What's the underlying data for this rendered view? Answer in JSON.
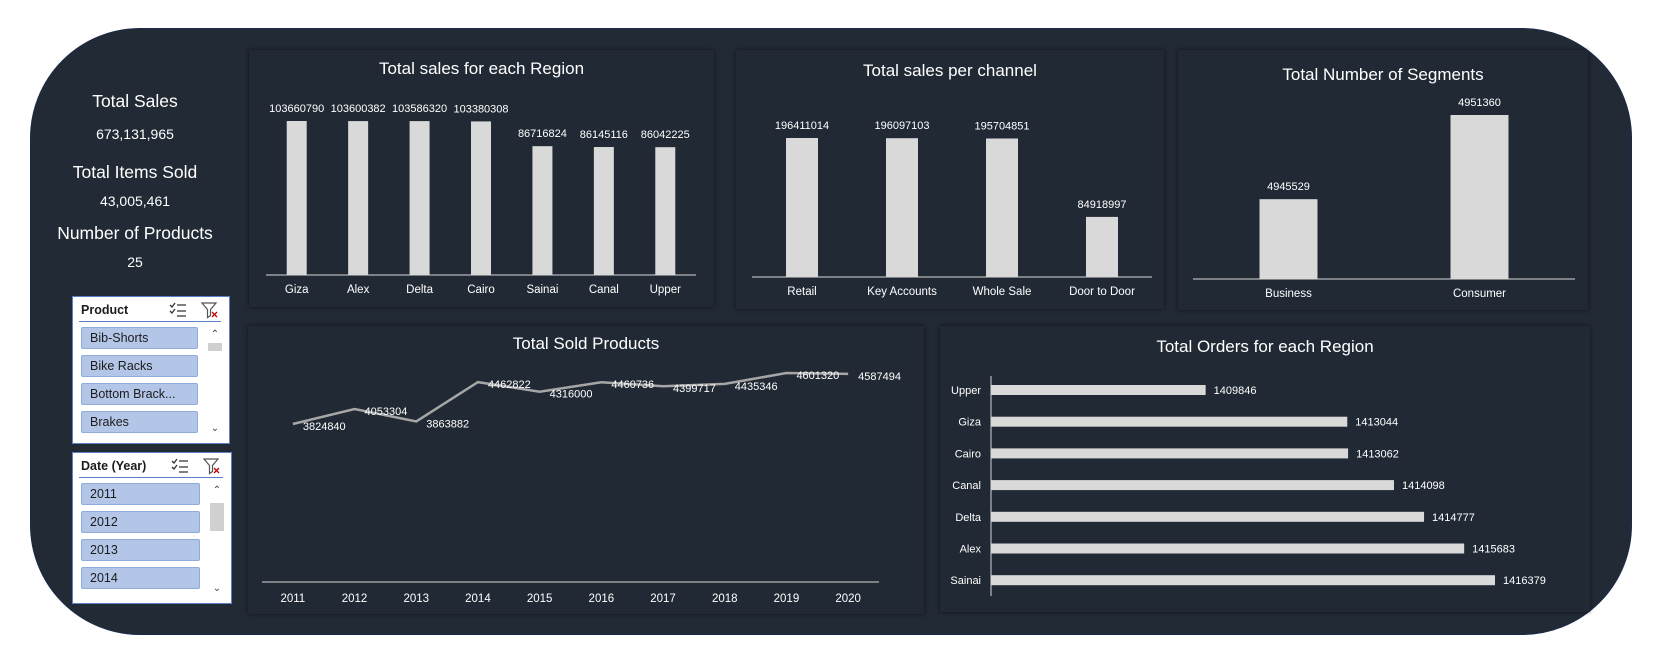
{
  "kpis": {
    "total_sales": {
      "label": "Total Sales",
      "value": "673,131,965"
    },
    "total_items": {
      "label": "Total Items Sold",
      "value": "43,005,461"
    },
    "num_products": {
      "label": "Number of Products",
      "value": "25"
    }
  },
  "slicers": {
    "product": {
      "title": "Product",
      "items": [
        "Bib-Shorts",
        "Bike Racks",
        "Bottom Brack...",
        "Brakes"
      ]
    },
    "year": {
      "title": "Date (Year)",
      "items": [
        "2011",
        "2012",
        "2013",
        "2014"
      ]
    }
  },
  "chart_data": [
    {
      "id": "region_sales",
      "type": "bar",
      "title": "Total sales for each Region",
      "categories": [
        "Giza",
        "Alex",
        "Delta",
        "Cairo",
        "Sainai",
        "Canal",
        "Upper"
      ],
      "values": [
        103660790,
        103600382,
        103586320,
        103380308,
        86716824,
        86145116,
        86042225
      ]
    },
    {
      "id": "channel_sales",
      "type": "bar",
      "title": "Total sales per channel",
      "categories": [
        "Retail",
        "Key Accounts",
        "Whole Sale",
        "Door to Door"
      ],
      "values": [
        196411014,
        196097103,
        195704851,
        84918997
      ]
    },
    {
      "id": "segments",
      "type": "bar",
      "title": "Total Number of Segments",
      "categories": [
        "Business",
        "Consumer"
      ],
      "values": [
        4945529,
        4951360
      ]
    },
    {
      "id": "sold_products",
      "type": "line",
      "title": "Total Sold Products",
      "categories": [
        "2011",
        "2012",
        "2013",
        "2014",
        "2015",
        "2016",
        "2017",
        "2018",
        "2019",
        "2020"
      ],
      "values": [
        3824840,
        4053304,
        3863882,
        4462822,
        4316000,
        4460736,
        4399717,
        4435346,
        4601320,
        4587494
      ]
    },
    {
      "id": "region_orders",
      "type": "bar",
      "orientation": "horizontal",
      "title": "Total Orders for each Region",
      "categories": [
        "Upper",
        "Giza",
        "Cairo",
        "Canal",
        "Delta",
        "Alex",
        "Sainai"
      ],
      "values": [
        1409846,
        1413044,
        1413062,
        1414098,
        1414777,
        1415683,
        1416379
      ]
    }
  ],
  "colors": {
    "background": "#222a35",
    "bar": "#d9d9d9",
    "line": "#a6a6a6",
    "slicer_item": "#b4c6e7"
  }
}
